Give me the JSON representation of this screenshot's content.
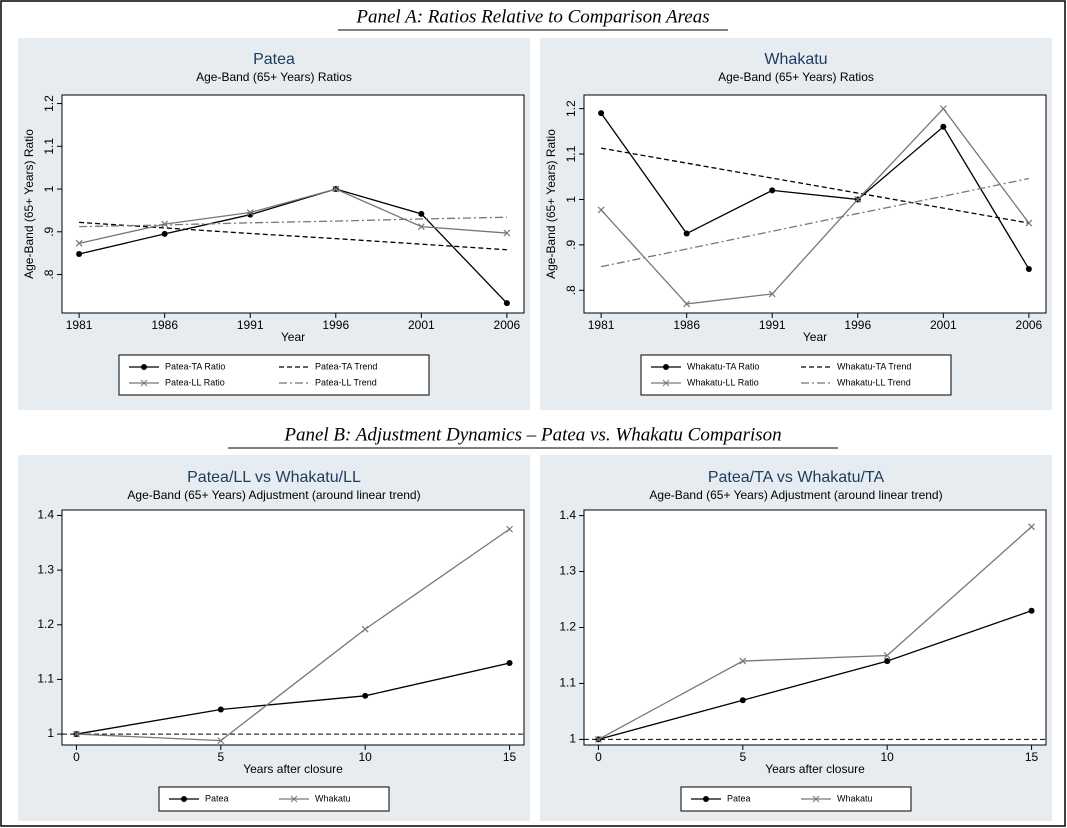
{
  "panels": [
    {
      "title": "Panel A: Ratios Relative to Comparison Areas"
    },
    {
      "title": "Panel B: Adjustment Dynamics – Patea vs. Whakatu Comparison"
    }
  ],
  "chart_data": [
    {
      "type": "line",
      "title": "Patea",
      "subtitle": "Age-Band (65+ Years) Ratios",
      "x_label": "Year",
      "y_label": "Age-Band (65+ Years) Ratio",
      "x": [
        1981,
        1986,
        1991,
        1996,
        2001,
        2006
      ],
      "xlim": [
        1980,
        2007
      ],
      "xticks": [
        1981,
        1986,
        1991,
        1996,
        2001,
        2006
      ],
      "ylim": [
        0.71,
        1.22
      ],
      "yticks": [
        {
          "value": 0.8,
          "label": ".8"
        },
        {
          "value": 0.9,
          "label": ".9"
        },
        1,
        1.1,
        1.2
      ],
      "series": [
        {
          "name": "Patea-TA Ratio",
          "color": "#000000",
          "marker": "circle",
          "dash": "solid",
          "values": [
            0.848,
            0.895,
            0.94,
            1.0,
            0.942,
            0.733
          ]
        },
        {
          "name": "Patea-TA Trend",
          "color": "#000000",
          "marker": "none",
          "dash": "dash",
          "values": [
            0.922,
            0.909,
            0.896,
            0.884,
            0.871,
            0.858
          ]
        },
        {
          "name": "Patea-LL Ratio",
          "color": "#777777",
          "marker": "x",
          "dash": "solid",
          "values": [
            0.873,
            0.918,
            0.945,
            1.0,
            0.912,
            0.897
          ]
        },
        {
          "name": "Patea-LL Trend",
          "color": "#777777",
          "marker": "none",
          "dash": "dashdot",
          "values": [
            0.912,
            0.916,
            0.921,
            0.925,
            0.93,
            0.934
          ]
        }
      ]
    },
    {
      "type": "line",
      "title": "Whakatu",
      "subtitle": "Age-Band (65+ Years) Ratios",
      "x_label": "Year",
      "y_label": "Age-Band (65+ Years) Ratio",
      "x": [
        1981,
        1986,
        1991,
        1996,
        2001,
        2006
      ],
      "xlim": [
        1980,
        2007
      ],
      "xticks": [
        1981,
        1986,
        1991,
        1996,
        2001,
        2006
      ],
      "ylim": [
        0.75,
        1.23
      ],
      "yticks": [
        {
          "value": 0.8,
          "label": ".8"
        },
        {
          "value": 0.9,
          "label": ".9"
        },
        1,
        1.1,
        1.2
      ],
      "series": [
        {
          "name": "Whakatu-TA Ratio",
          "color": "#000000",
          "marker": "circle",
          "dash": "solid",
          "values": [
            1.19,
            0.925,
            1.02,
            1.0,
            1.16,
            0.847
          ]
        },
        {
          "name": "Whakatu-TA Trend",
          "color": "#000000",
          "marker": "none",
          "dash": "dash",
          "values": [
            1.113,
            1.08,
            1.047,
            1.014,
            0.981,
            0.948
          ]
        },
        {
          "name": "Whakatu-LL Ratio",
          "color": "#777777",
          "marker": "x",
          "dash": "solid",
          "values": [
            0.977,
            0.77,
            0.792,
            1.0,
            1.2,
            0.948
          ]
        },
        {
          "name": "Whakatu-LL Trend",
          "color": "#777777",
          "marker": "none",
          "dash": "dashdot",
          "values": [
            0.852,
            0.891,
            0.93,
            0.969,
            1.007,
            1.046
          ]
        }
      ]
    },
    {
      "type": "line",
      "title": "Patea/LL vs Whakatu/LL",
      "subtitle": "Age-Band (65+ Years) Adjustment (around linear trend)",
      "x_label": "Years after closure",
      "x": [
        0,
        5,
        10,
        15
      ],
      "xlim": [
        -0.5,
        15.5
      ],
      "xticks": [
        0,
        5,
        10,
        15
      ],
      "ylim": [
        0.98,
        1.41
      ],
      "yticks": [
        1,
        1.1,
        1.2,
        1.3,
        1.4
      ],
      "hline": 1,
      "series": [
        {
          "name": "Patea",
          "color": "#000000",
          "marker": "circle",
          "dash": "solid",
          "values": [
            1.0,
            1.045,
            1.07,
            1.13
          ]
        },
        {
          "name": "Whakatu",
          "color": "#777777",
          "marker": "x",
          "dash": "solid",
          "values": [
            1.0,
            0.988,
            1.192,
            1.375
          ]
        }
      ]
    },
    {
      "type": "line",
      "title": "Patea/TA vs Whakatu/TA",
      "subtitle": "Age-Band (65+ Years) Adjustment (around linear trend)",
      "x_label": "Years after closure",
      "x": [
        0,
        5,
        10,
        15
      ],
      "xlim": [
        -0.5,
        15.5
      ],
      "xticks": [
        0,
        5,
        10,
        15
      ],
      "ylim": [
        0.99,
        1.41
      ],
      "yticks": [
        1,
        1.1,
        1.2,
        1.3,
        1.4
      ],
      "hline": 1,
      "series": [
        {
          "name": "Patea",
          "color": "#000000",
          "marker": "circle",
          "dash": "solid",
          "values": [
            1.0,
            1.07,
            1.14,
            1.23
          ]
        },
        {
          "name": "Whakatu",
          "color": "#777777",
          "marker": "x",
          "dash": "solid",
          "values": [
            1.0,
            1.14,
            1.15,
            1.38
          ]
        }
      ]
    }
  ]
}
